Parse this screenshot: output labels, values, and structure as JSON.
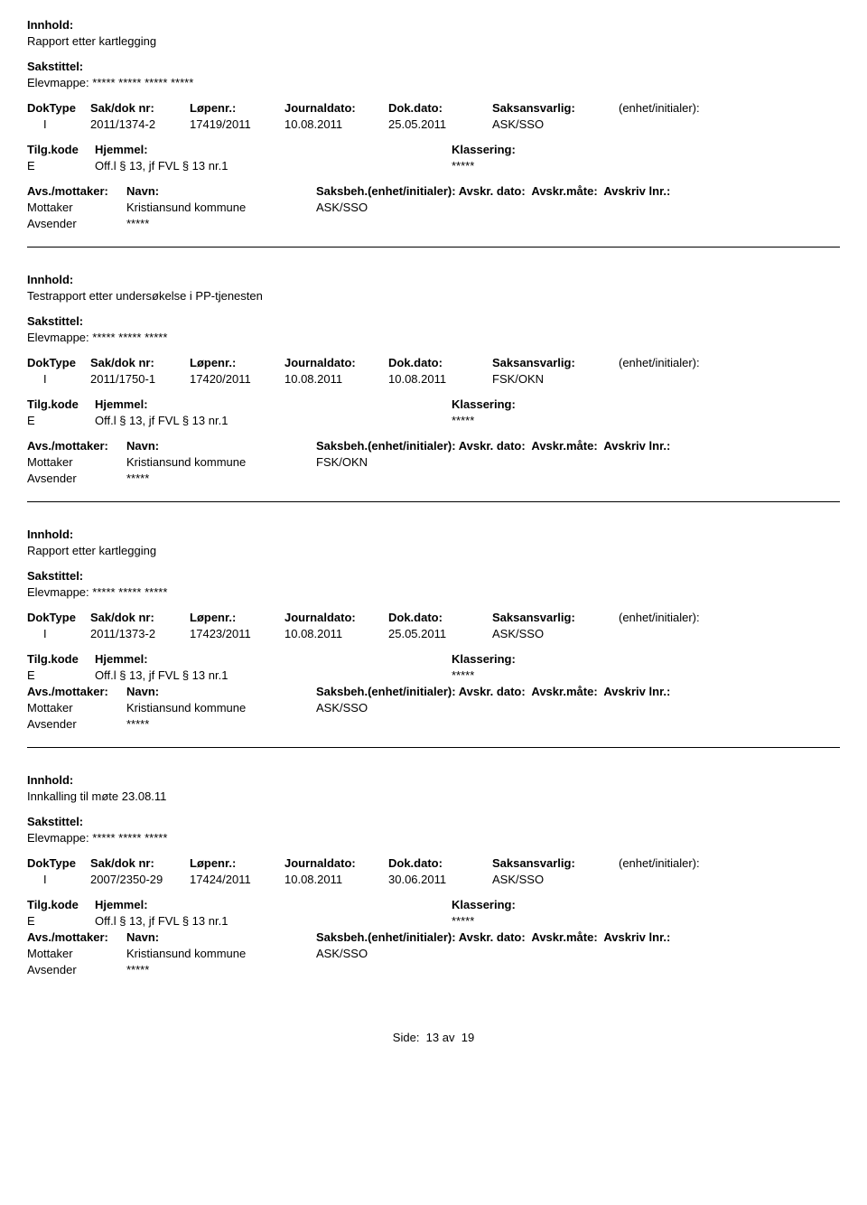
{
  "labels": {
    "innhold": "Innhold:",
    "sakstittel": "Sakstittel:",
    "doktype": "DokType",
    "saknr": "Sak/dok nr:",
    "lopenr": "Løpenr.:",
    "journaldato": "Journaldato:",
    "dokdato": "Dok.dato:",
    "saksansvarlig": "Saksansvarlig:",
    "enhet": "(enhet/initialer):",
    "tilgkode": "Tilg.kode",
    "hjemmel": "Hjemmel:",
    "klassering": "Klassering:",
    "avsmottaker": "Avs./mottaker:",
    "navn": "Navn:",
    "saksbeh": "Saksbeh.(enhet/initialer):",
    "avskrdato": "Avskr. dato:",
    "avskrmate": "Avskr.måte:",
    "avskrivlnr": "Avskriv lnr.:",
    "mottaker": "Mottaker",
    "avsender": "Avsender"
  },
  "records": [
    {
      "innhold": "Rapport etter kartlegging",
      "sakstittel": "Elevmappe: ***** ***** ***** *****",
      "doktype": "I",
      "saknr": "2011/1374-2",
      "lopenr": "17419/2011",
      "journaldato": "10.08.2011",
      "dokdato": "25.05.2011",
      "saksansvarlig": "ASK/SSO",
      "tilgkode": "E",
      "hjemmel": "Off.l § 13, jf FVL § 13 nr.1",
      "klassering": "*****",
      "mottaker_navn": "Kristiansund kommune",
      "saksbeh_val": "ASK/SSO",
      "avsender_navn": "*****"
    },
    {
      "innhold": "Testrapport etter undersøkelse i PP-tjenesten",
      "sakstittel": "Elevmappe: ***** ***** *****",
      "doktype": "I",
      "saknr": "2011/1750-1",
      "lopenr": "17420/2011",
      "journaldato": "10.08.2011",
      "dokdato": "10.08.2011",
      "saksansvarlig": "FSK/OKN",
      "tilgkode": "E",
      "hjemmel": "Off.l § 13, jf FVL § 13 nr.1",
      "klassering": "*****",
      "mottaker_navn": "Kristiansund kommune",
      "saksbeh_val": "FSK/OKN",
      "avsender_navn": "*****"
    },
    {
      "innhold": "Rapport etter kartlegging",
      "sakstittel": "Elevmappe: ***** ***** *****",
      "doktype": "I",
      "saknr": "2011/1373-2",
      "lopenr": "17423/2011",
      "journaldato": "10.08.2011",
      "dokdato": "25.05.2011",
      "saksansvarlig": "ASK/SSO",
      "tilgkode": "E",
      "hjemmel": "Off.l § 13, jf FVL § 13 nr.1",
      "klassering": "*****",
      "mottaker_navn": "Kristiansund kommune",
      "saksbeh_val": "ASK/SSO",
      "avsender_navn": "*****"
    },
    {
      "innhold": "Innkalling til møte 23.08.11",
      "sakstittel": "Elevmappe:  ***** ***** *****",
      "doktype": "I",
      "saknr": "2007/2350-29",
      "lopenr": "17424/2011",
      "journaldato": "10.08.2011",
      "dokdato": "30.06.2011",
      "saksansvarlig": "ASK/SSO",
      "tilgkode": "E",
      "hjemmel": "Off.l § 13, jf FVL § 13 nr.1",
      "klassering": "*****",
      "mottaker_navn": "Kristiansund kommune",
      "saksbeh_val": "ASK/SSO",
      "avsender_navn": "*****"
    }
  ],
  "footer": {
    "side_label": "Side:",
    "page": "13",
    "av": "av",
    "total": "19"
  }
}
